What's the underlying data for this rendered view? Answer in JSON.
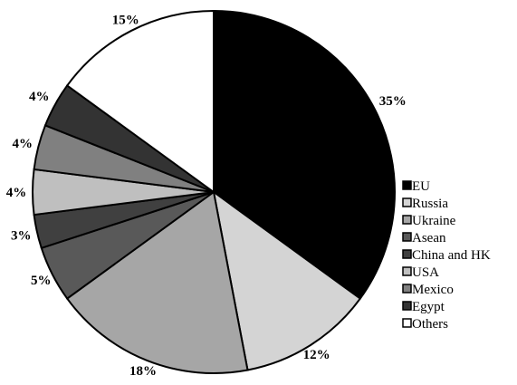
{
  "chart_data": {
    "type": "pie",
    "title": "",
    "slices": [
      {
        "label": "EU",
        "value": 35,
        "value_label": "35%",
        "color": "#000000"
      },
      {
        "label": "Russia",
        "value": 12,
        "value_label": "12%",
        "color": "#d4d4d4"
      },
      {
        "label": "Ukraine",
        "value": 18,
        "value_label": "18%",
        "color": "#a6a6a6"
      },
      {
        "label": "Asean",
        "value": 5,
        "value_label": "5%",
        "color": "#595959"
      },
      {
        "label": "China and HK",
        "value": 3,
        "value_label": "3%",
        "color": "#404040"
      },
      {
        "label": "USA",
        "value": 4,
        "value_label": "4%",
        "color": "#bfbfbf"
      },
      {
        "label": "Mexico",
        "value": 4,
        "value_label": "4%",
        "color": "#808080"
      },
      {
        "label": "Egypt",
        "value": 4,
        "value_label": "4%",
        "color": "#333333"
      },
      {
        "label": "Others",
        "value": 15,
        "value_label": "15%",
        "color": "#ffffff"
      }
    ],
    "legend_position": "right"
  }
}
